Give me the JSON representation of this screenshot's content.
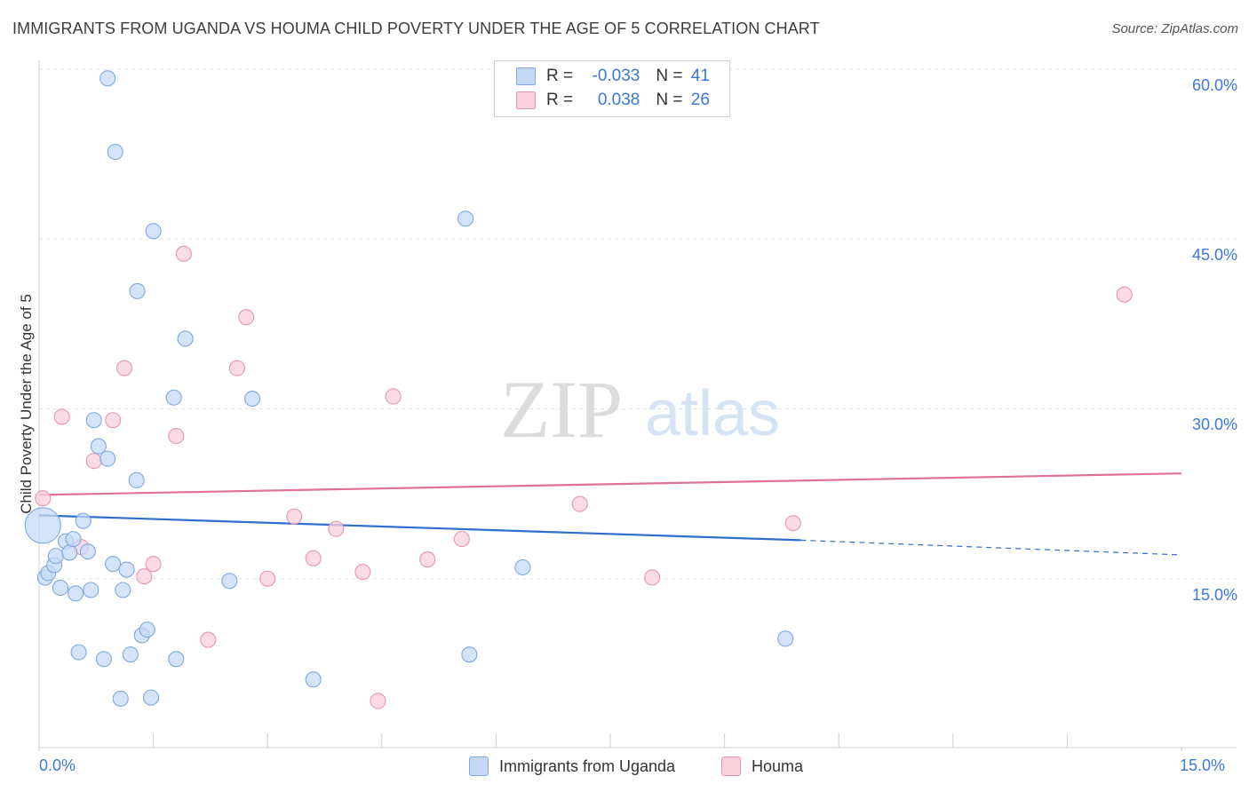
{
  "title": "IMMIGRANTS FROM UGANDA VS HOUMA CHILD POVERTY UNDER THE AGE OF 5 CORRELATION CHART",
  "source": "Source: ZipAtlas.com",
  "watermark": {
    "zip": "ZIP",
    "atlas": "atlas"
  },
  "colors": {
    "blue_fill": "#c5d9f5",
    "blue_stroke": "#7fa8e0",
    "blue_line": "#2f6fcb",
    "pink_fill": "#f9d0dc",
    "pink_stroke": "#e795b0",
    "pink_line": "#e07099",
    "axis_label": "#3c78d8"
  },
  "legend": {
    "rows": [
      {
        "r_label": "R = ",
        "r_value": "-0.033",
        "n_label": "N = ",
        "n_value": "41"
      },
      {
        "r_label": "R = ",
        "r_value": "0.038",
        "n_label": "N = ",
        "n_value": "26"
      }
    ],
    "series_names": [
      "Immigrants from Uganda",
      "Houma"
    ]
  },
  "chart_data": {
    "type": "scatter",
    "title": "IMMIGRANTS FROM UGANDA VS HOUMA CHILD POVERTY UNDER THE AGE OF 5 CORRELATION CHART",
    "xlabel": "",
    "ylabel": "Child Poverty Under the Age of 5",
    "xlim": [
      0,
      15
    ],
    "ylim": [
      0,
      62
    ],
    "x_tick_labels": [
      "0.0%",
      "15.0%"
    ],
    "y_ticks": [
      15,
      30,
      45,
      60
    ],
    "y_tick_labels": [
      "15.0%",
      "30.0%",
      "45.0%",
      "60.0%"
    ],
    "series": [
      {
        "name": "Immigrants from Uganda",
        "r": -0.033,
        "n": 41,
        "trend": {
          "x0": 0,
          "y0": 20.6,
          "x1": 10.0,
          "y1": 18.4,
          "dashed_to_x": 15.0,
          "dashed_y": 17.1
        },
        "points": [
          {
            "x": 0.05,
            "y": 19.7,
            "big": true
          },
          {
            "x": 0.08,
            "y": 15.1
          },
          {
            "x": 0.12,
            "y": 15.5
          },
          {
            "x": 0.2,
            "y": 16.2
          },
          {
            "x": 0.22,
            "y": 17.0
          },
          {
            "x": 0.28,
            "y": 14.2
          },
          {
            "x": 0.35,
            "y": 18.3
          },
          {
            "x": 0.4,
            "y": 17.3
          },
          {
            "x": 0.45,
            "y": 18.5
          },
          {
            "x": 0.48,
            "y": 13.7
          },
          {
            "x": 0.52,
            "y": 8.5
          },
          {
            "x": 0.58,
            "y": 20.1
          },
          {
            "x": 0.64,
            "y": 17.4
          },
          {
            "x": 0.68,
            "y": 14.0
          },
          {
            "x": 0.72,
            "y": 29.0
          },
          {
            "x": 0.78,
            "y": 26.7
          },
          {
            "x": 0.85,
            "y": 7.9
          },
          {
            "x": 0.9,
            "y": 25.6
          },
          {
            "x": 0.9,
            "y": 59.2
          },
          {
            "x": 0.97,
            "y": 16.3
          },
          {
            "x": 1.0,
            "y": 52.7
          },
          {
            "x": 1.07,
            "y": 4.4
          },
          {
            "x": 1.1,
            "y": 14.0
          },
          {
            "x": 1.15,
            "y": 15.8
          },
          {
            "x": 1.2,
            "y": 8.3
          },
          {
            "x": 1.28,
            "y": 23.7
          },
          {
            "x": 1.29,
            "y": 40.4
          },
          {
            "x": 1.35,
            "y": 10.0
          },
          {
            "x": 1.42,
            "y": 10.5
          },
          {
            "x": 1.47,
            "y": 4.5
          },
          {
            "x": 1.5,
            "y": 45.7
          },
          {
            "x": 1.77,
            "y": 31.0
          },
          {
            "x": 1.8,
            "y": 7.9
          },
          {
            "x": 1.92,
            "y": 36.2
          },
          {
            "x": 2.5,
            "y": 14.8
          },
          {
            "x": 2.8,
            "y": 30.9
          },
          {
            "x": 3.6,
            "y": 6.1
          },
          {
            "x": 5.6,
            "y": 46.8
          },
          {
            "x": 5.65,
            "y": 8.3
          },
          {
            "x": 6.35,
            "y": 16.0
          },
          {
            "x": 9.8,
            "y": 9.7
          }
        ]
      },
      {
        "name": "Houma",
        "r": 0.038,
        "n": 26,
        "trend": {
          "x0": 0,
          "y0": 22.4,
          "x1": 15.0,
          "y1": 24.3
        },
        "points": [
          {
            "x": 0.05,
            "y": 22.1
          },
          {
            "x": 0.3,
            "y": 29.3
          },
          {
            "x": 0.55,
            "y": 17.8
          },
          {
            "x": 0.72,
            "y": 25.4
          },
          {
            "x": 0.97,
            "y": 29.0
          },
          {
            "x": 1.12,
            "y": 33.6
          },
          {
            "x": 1.38,
            "y": 15.2
          },
          {
            "x": 1.5,
            "y": 16.3
          },
          {
            "x": 1.8,
            "y": 27.6
          },
          {
            "x": 1.9,
            "y": 43.7
          },
          {
            "x": 2.22,
            "y": 9.6
          },
          {
            "x": 2.6,
            "y": 33.6
          },
          {
            "x": 2.72,
            "y": 38.1
          },
          {
            "x": 3.0,
            "y": 15.0
          },
          {
            "x": 3.35,
            "y": 20.5
          },
          {
            "x": 3.6,
            "y": 16.8
          },
          {
            "x": 3.9,
            "y": 19.4
          },
          {
            "x": 4.25,
            "y": 15.6
          },
          {
            "x": 4.45,
            "y": 4.2
          },
          {
            "x": 4.65,
            "y": 31.1
          },
          {
            "x": 5.1,
            "y": 16.7
          },
          {
            "x": 5.55,
            "y": 18.5
          },
          {
            "x": 7.1,
            "y": 21.6
          },
          {
            "x": 8.05,
            "y": 15.1
          },
          {
            "x": 9.9,
            "y": 19.9
          },
          {
            "x": 14.25,
            "y": 40.1
          }
        ]
      }
    ]
  }
}
